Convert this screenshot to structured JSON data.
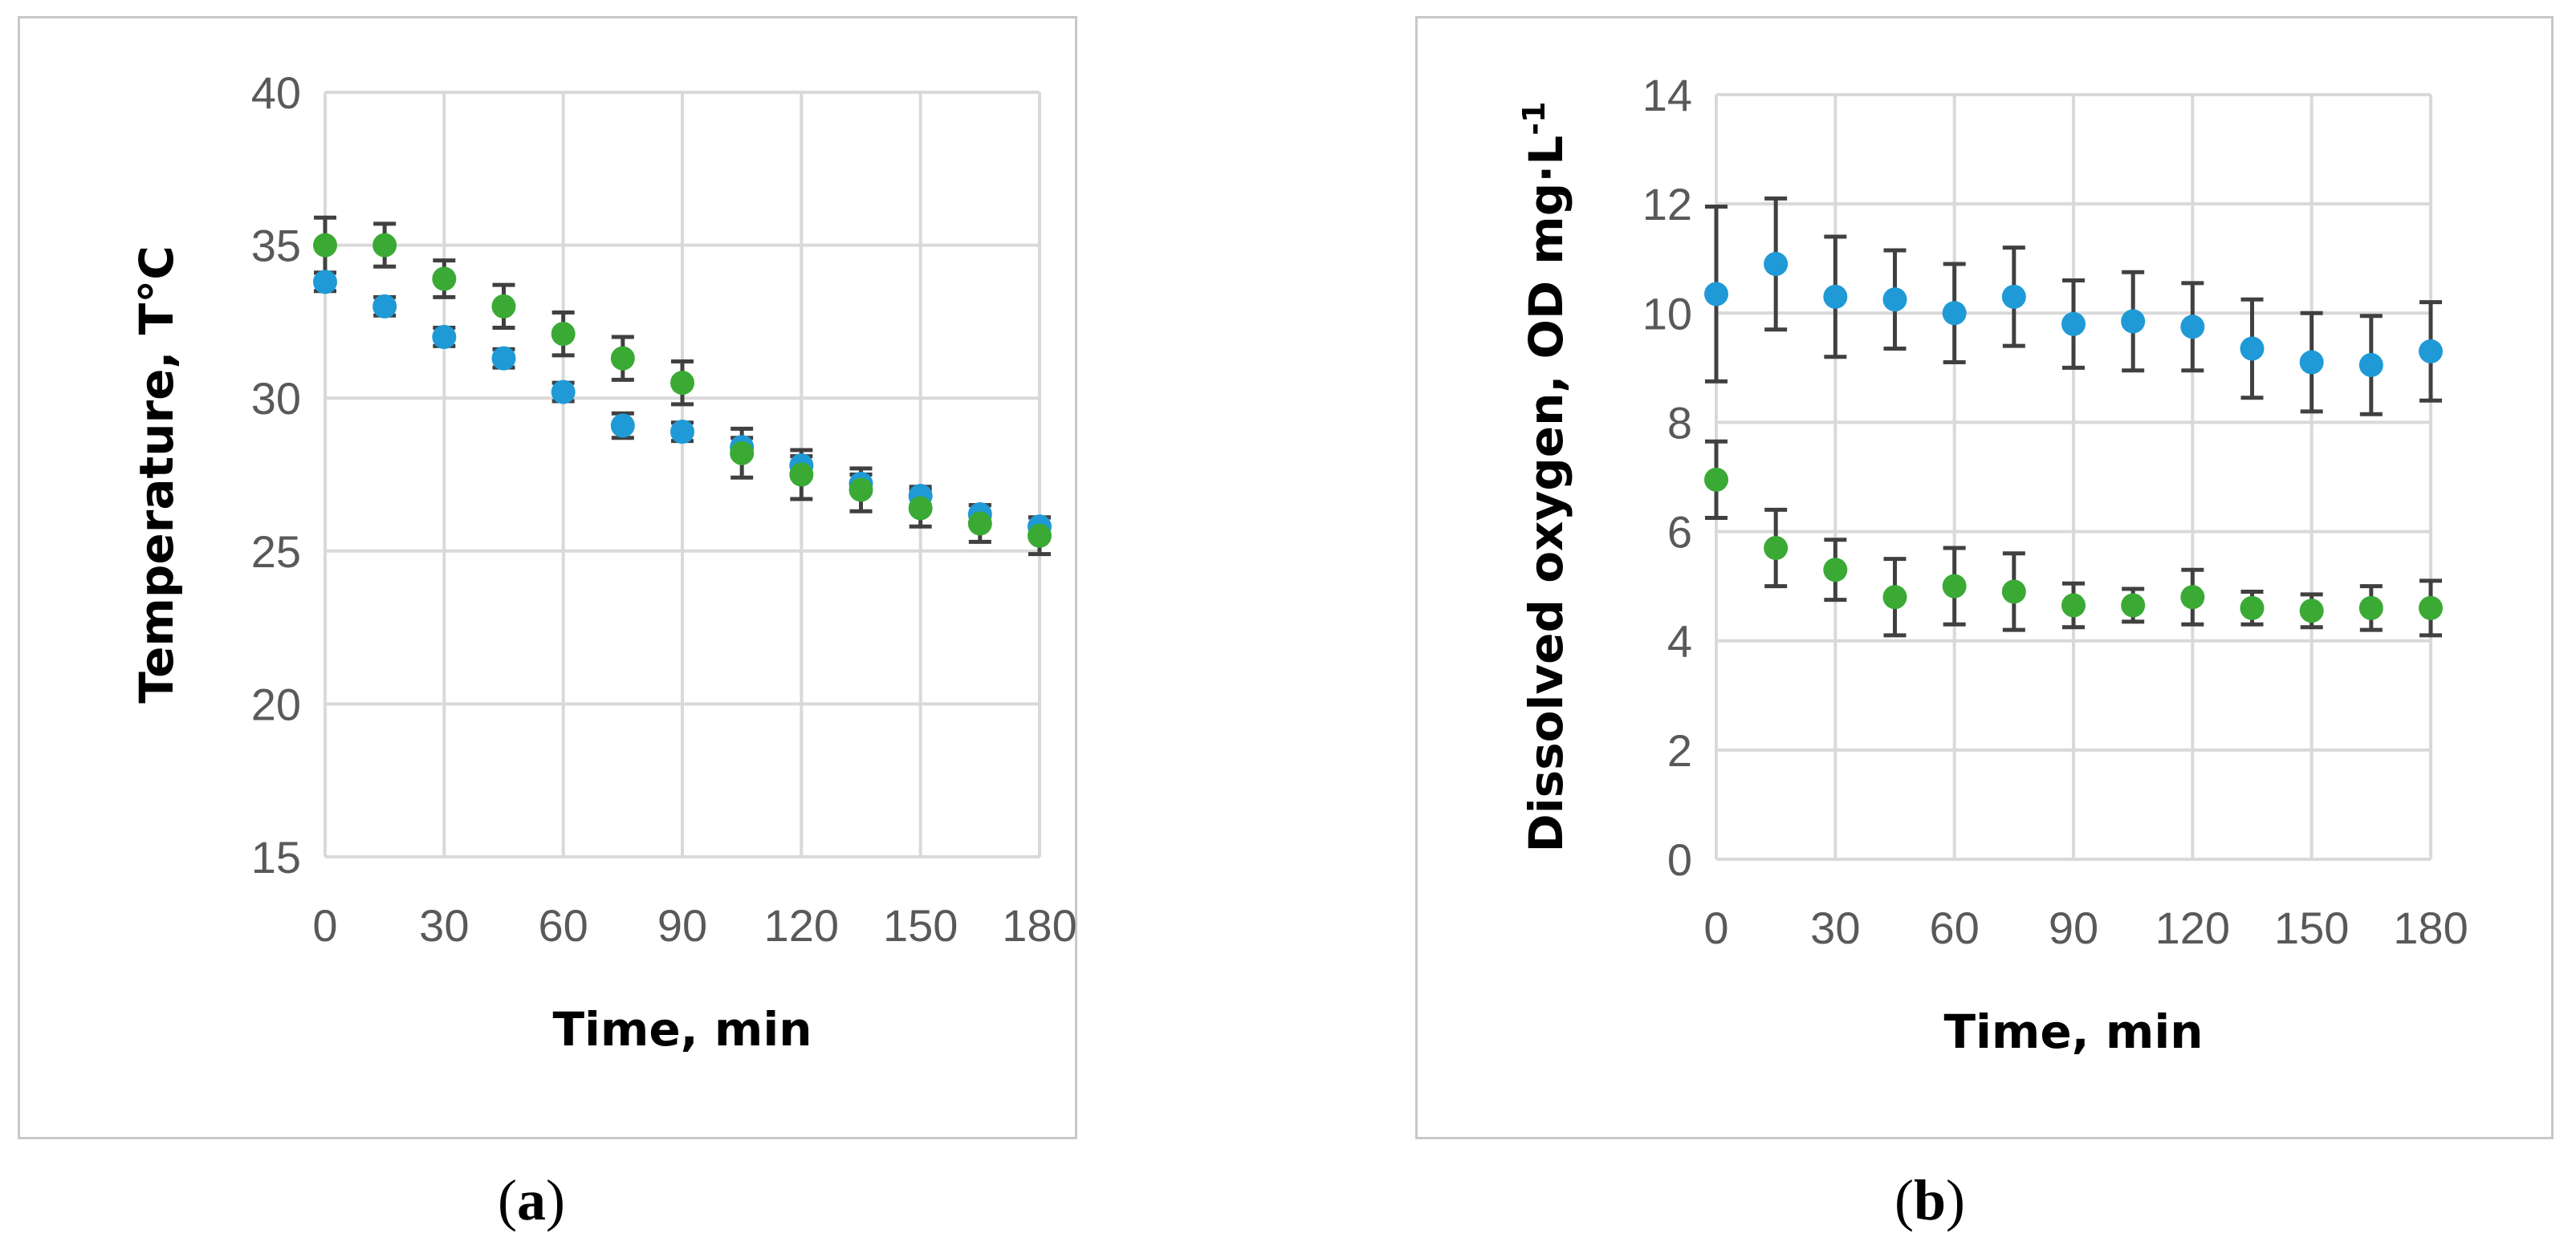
{
  "colors": {
    "series1": "#1f9ad6",
    "series2": "#3aaa35",
    "error_bar": "#404040",
    "grid": "#d9d9d9",
    "tick_text": "#595959"
  },
  "captions": [
    {
      "open": "(",
      "letter": "a",
      "close": ")"
    },
    {
      "open": "(",
      "letter": "b",
      "close": ")"
    }
  ],
  "chart_data": [
    {
      "type": "scatter",
      "title": "",
      "xlabel": "Time, min",
      "ylabel": "Temperature, T°C",
      "xlim": [
        0,
        180
      ],
      "ylim": [
        15,
        40
      ],
      "xticks": [
        0,
        30,
        60,
        90,
        120,
        150,
        180
      ],
      "yticks": [
        15,
        20,
        25,
        30,
        35,
        40
      ],
      "grid": true,
      "legend": "none",
      "x": [
        0,
        15,
        30,
        45,
        60,
        75,
        90,
        105,
        120,
        135,
        150,
        165,
        180
      ],
      "series": [
        {
          "color": "#1f9ad6",
          "values": [
            33.8,
            33.0,
            32.0,
            31.3,
            30.2,
            29.1,
            28.9,
            28.4,
            27.8,
            27.2,
            26.8,
            26.2,
            25.8
          ],
          "errors": [
            0.3,
            0.3,
            0.3,
            0.3,
            0.3,
            0.4,
            0.3,
            0.3,
            0.3,
            0.3,
            0.3,
            0.3,
            0.3
          ]
        },
        {
          "color": "#3aaa35",
          "values": [
            35.0,
            35.0,
            33.9,
            33.0,
            32.1,
            31.3,
            30.5,
            28.2,
            27.5,
            27.0,
            26.4,
            25.9,
            25.5
          ],
          "errors": [
            0.9,
            0.7,
            0.6,
            0.7,
            0.7,
            0.7,
            0.7,
            0.8,
            0.8,
            0.7,
            0.6,
            0.6,
            0.6
          ]
        }
      ]
    },
    {
      "type": "scatter",
      "title": "",
      "xlabel": "Time, min",
      "ylabel": "Dissolved oxygen, OD mg·L",
      "ylabel_superscript": "-1",
      "xlim": [
        0,
        180
      ],
      "ylim": [
        0,
        14
      ],
      "xticks": [
        0,
        30,
        60,
        90,
        120,
        150,
        180
      ],
      "yticks": [
        0,
        2,
        4,
        6,
        8,
        10,
        12,
        14
      ],
      "grid": true,
      "legend": "none",
      "x": [
        0,
        15,
        30,
        45,
        60,
        75,
        90,
        105,
        120,
        135,
        150,
        165,
        180
      ],
      "series": [
        {
          "color": "#1f9ad6",
          "values": [
            10.35,
            10.9,
            10.3,
            10.25,
            10.0,
            10.3,
            9.8,
            9.85,
            9.75,
            9.35,
            9.1,
            9.05,
            9.3
          ],
          "errors": [
            1.6,
            1.2,
            1.1,
            0.9,
            0.9,
            0.9,
            0.8,
            0.9,
            0.8,
            0.9,
            0.9,
            0.9,
            0.9
          ]
        },
        {
          "color": "#3aaa35",
          "values": [
            6.95,
            5.7,
            5.3,
            4.8,
            5.0,
            4.9,
            4.65,
            4.65,
            4.8,
            4.6,
            4.55,
            4.6,
            4.6
          ],
          "errors": [
            0.7,
            0.7,
            0.55,
            0.7,
            0.7,
            0.7,
            0.4,
            0.3,
            0.5,
            0.3,
            0.3,
            0.4,
            0.5
          ]
        }
      ]
    }
  ]
}
